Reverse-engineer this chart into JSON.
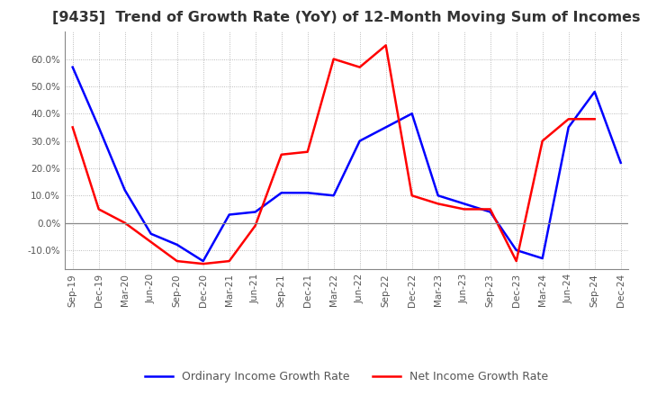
{
  "title": "[9435]  Trend of Growth Rate (YoY) of 12-Month Moving Sum of Incomes",
  "title_fontsize": 11.5,
  "x_labels": [
    "Sep-19",
    "Dec-19",
    "Mar-20",
    "Jun-20",
    "Sep-20",
    "Dec-20",
    "Mar-21",
    "Jun-21",
    "Sep-21",
    "Dec-21",
    "Mar-22",
    "Jun-22",
    "Sep-22",
    "Dec-22",
    "Mar-23",
    "Jun-23",
    "Sep-23",
    "Dec-23",
    "Mar-24",
    "Jun-24",
    "Sep-24",
    "Dec-24"
  ],
  "ordinary_income": [
    57,
    35,
    12,
    -4,
    -8,
    -14,
    3,
    4,
    11,
    11,
    10,
    30,
    35,
    40,
    10,
    7,
    4,
    -10,
    -13,
    35,
    48,
    22
  ],
  "net_income": [
    35,
    5,
    0,
    -7,
    -14,
    -15,
    -14,
    -1,
    25,
    26,
    60,
    57,
    65,
    10,
    7,
    5,
    5,
    -14,
    30,
    38,
    38,
    null
  ],
  "ordinary_color": "#0000FF",
  "net_color": "#FF0000",
  "ylim": [
    -17,
    70
  ],
  "yticks": [
    -10,
    0,
    10,
    20,
    30,
    40,
    50,
    60
  ],
  "legend_labels": [
    "Ordinary Income Growth Rate",
    "Net Income Growth Rate"
  ],
  "background_color": "#FFFFFF",
  "grid_color": "#AAAAAA"
}
